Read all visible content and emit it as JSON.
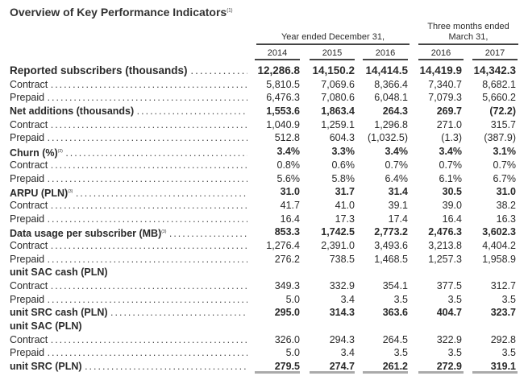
{
  "title": "Overview of Key Performance Indicators",
  "title_note": "(1)",
  "header": {
    "group1": "Year ended December 31,",
    "group2": "Three months ended March 31,",
    "years": [
      "2014",
      "2015",
      "2016",
      "2016",
      "2017"
    ]
  },
  "rows": [
    {
      "label": "Reported subscribers (thousands)",
      "bold": true,
      "big": true,
      "values": [
        "12,286.8",
        "14,150.2",
        "14,414.5",
        "14,419.9",
        "14,342.3"
      ]
    },
    {
      "label": "Contract",
      "values": [
        "5,810.5",
        "7,069.6",
        "8,366.4",
        "7,340.7",
        "8,682.1"
      ]
    },
    {
      "label": "Prepaid",
      "values": [
        "6,476.3",
        "7,080.6",
        "6,048.1",
        "7,079.3",
        "5,660.2"
      ]
    },
    {
      "label": "Net additions (thousands)",
      "bold": true,
      "values": [
        "1,553.6",
        "1,863.4",
        "264.3",
        "269.7",
        "(72.2)"
      ]
    },
    {
      "label": "Contract",
      "values": [
        "1,040.9",
        "1,259.1",
        "1,296.8",
        "271.0",
        "315.7"
      ]
    },
    {
      "label": "Prepaid",
      "values": [
        "512.8",
        "604.3",
        "(1,032.5)",
        "(1.3)",
        "(387.9)"
      ]
    },
    {
      "label": "Churn (%)",
      "note": "(2)",
      "bold": true,
      "values": [
        "3.4%",
        "3.3%",
        "3.4%",
        "3.4%",
        "3.1%"
      ]
    },
    {
      "label": "Contract",
      "values": [
        "0.8%",
        "0.6%",
        "0.7%",
        "0.7%",
        "0.7%"
      ]
    },
    {
      "label": "Prepaid",
      "values": [
        "5.6%",
        "5.8%",
        "6.4%",
        "6.1%",
        "6.7%"
      ]
    },
    {
      "label": "ARPU (PLN)",
      "note": "(3)",
      "bold": true,
      "values": [
        "31.0",
        "31.7",
        "31.4",
        "30.5",
        "31.0"
      ]
    },
    {
      "label": "Contract",
      "values": [
        "41.7",
        "41.0",
        "39.1",
        "39.0",
        "38.2"
      ]
    },
    {
      "label": "Prepaid",
      "values": [
        "16.4",
        "17.3",
        "17.4",
        "16.4",
        "16.3"
      ]
    },
    {
      "label": "Data usage per subscriber (MB)",
      "note": "(3)",
      "bold": true,
      "values": [
        "853.3",
        "1,742.5",
        "2,773.2",
        "2,476.3",
        "3,602.3"
      ]
    },
    {
      "label": "Contract",
      "values": [
        "1,276.4",
        "2,391.0",
        "3,493.6",
        "3,213.8",
        "4,404.2"
      ]
    },
    {
      "label": "Prepaid",
      "values": [
        "276.2",
        "738.5",
        "1,468.5",
        "1,257.3",
        "1,958.9"
      ]
    },
    {
      "label": "unit SAC cash (PLN)",
      "bold": true,
      "nodots": true,
      "values": [
        "",
        "",
        "",
        "",
        ""
      ]
    },
    {
      "label": "Contract",
      "values": [
        "349.3",
        "332.9",
        "354.1",
        "377.5",
        "312.7"
      ]
    },
    {
      "label": "Prepaid",
      "values": [
        "5.0",
        "3.4",
        "3.5",
        "3.5",
        "3.5"
      ]
    },
    {
      "label": "unit SRC cash (PLN)",
      "bold": true,
      "values": [
        "295.0",
        "314.3",
        "363.6",
        "404.7",
        "323.7"
      ]
    },
    {
      "label": "unit SAC (PLN)",
      "bold": true,
      "nodots": true,
      "values": [
        "",
        "",
        "",
        "",
        ""
      ]
    },
    {
      "label": "Contract",
      "values": [
        "326.0",
        "294.3",
        "264.5",
        "322.9",
        "292.8"
      ]
    },
    {
      "label": "Prepaid",
      "values": [
        "5.0",
        "3.4",
        "3.5",
        "3.5",
        "3.5"
      ]
    },
    {
      "label": "unit SRC (PLN)",
      "bold": true,
      "values": [
        "279.5",
        "274.7",
        "261.2",
        "272.9",
        "319.1"
      ]
    }
  ]
}
